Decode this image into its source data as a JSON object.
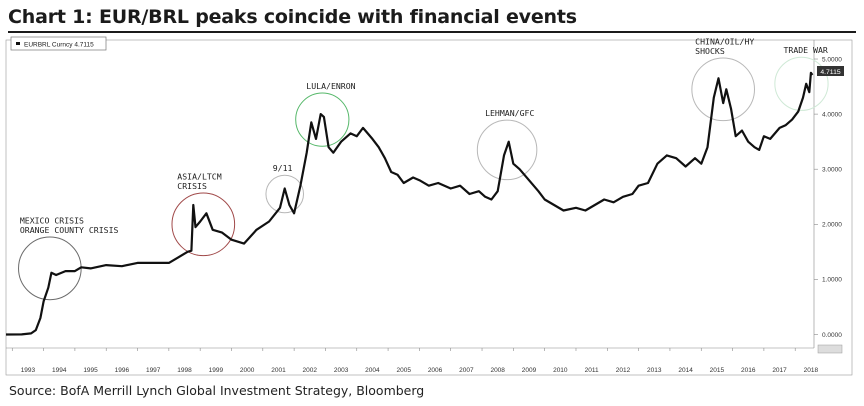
{
  "header": {
    "title": "Chart 1: EUR/BRL peaks coincide with financial events"
  },
  "footer": {
    "source": "Source: BofA Merrill Lynch Global Investment Strategy, Bloomberg"
  },
  "chart_data": {
    "type": "line",
    "legend": {
      "text": "EURBRL Curncy 4.7115",
      "placement": "top-left"
    },
    "last_value_label": "4.7115",
    "x_ticks": [
      "1993",
      "1994",
      "1995",
      "1996",
      "1997",
      "1998",
      "1999",
      "2000",
      "2001",
      "2002",
      "2003",
      "2004",
      "2005",
      "2006",
      "2007",
      "2008",
      "2009",
      "2010",
      "2011",
      "2012",
      "2013",
      "2014",
      "2015",
      "2016",
      "2017",
      "2018"
    ],
    "y_ticks": [
      "0.0000",
      "1.0000",
      "2.0000",
      "3.0000",
      "4.0000",
      "5.0000"
    ],
    "xlim": [
      1992.8,
      2018.6
    ],
    "ylim": [
      -0.1,
      5.2
    ],
    "series": [
      {
        "values": [
          [
            1992.8,
            0.0
          ],
          [
            1993.3,
            0.002
          ],
          [
            1993.6,
            0.02
          ],
          [
            1993.75,
            0.08
          ],
          [
            1993.9,
            0.3
          ],
          [
            1994.0,
            0.6
          ],
          [
            1994.15,
            0.85
          ],
          [
            1994.25,
            1.12
          ],
          [
            1994.4,
            1.08
          ],
          [
            1994.7,
            1.15
          ],
          [
            1995.0,
            1.15
          ],
          [
            1995.2,
            1.22
          ],
          [
            1995.5,
            1.2
          ],
          [
            1996.0,
            1.26
          ],
          [
            1996.5,
            1.24
          ],
          [
            1997.0,
            1.3
          ],
          [
            1997.5,
            1.3
          ],
          [
            1998.0,
            1.3
          ],
          [
            1998.3,
            1.4
          ],
          [
            1998.6,
            1.5
          ],
          [
            1998.72,
            1.52
          ],
          [
            1998.78,
            2.35
          ],
          [
            1998.85,
            1.95
          ],
          [
            1999.0,
            2.05
          ],
          [
            1999.2,
            2.2
          ],
          [
            1999.4,
            1.9
          ],
          [
            1999.7,
            1.85
          ],
          [
            2000.0,
            1.72
          ],
          [
            2000.4,
            1.65
          ],
          [
            2000.8,
            1.9
          ],
          [
            2001.2,
            2.05
          ],
          [
            2001.55,
            2.3
          ],
          [
            2001.7,
            2.65
          ],
          [
            2001.85,
            2.35
          ],
          [
            2002.0,
            2.2
          ],
          [
            2002.2,
            2.7
          ],
          [
            2002.4,
            3.3
          ],
          [
            2002.55,
            3.85
          ],
          [
            2002.7,
            3.55
          ],
          [
            2002.85,
            4.0
          ],
          [
            2002.95,
            3.95
          ],
          [
            2003.1,
            3.4
          ],
          [
            2003.25,
            3.3
          ],
          [
            2003.5,
            3.5
          ],
          [
            2003.8,
            3.65
          ],
          [
            2004.0,
            3.6
          ],
          [
            2004.2,
            3.75
          ],
          [
            2004.5,
            3.55
          ],
          [
            2004.7,
            3.4
          ],
          [
            2004.9,
            3.2
          ],
          [
            2005.1,
            2.95
          ],
          [
            2005.3,
            2.9
          ],
          [
            2005.5,
            2.75
          ],
          [
            2005.8,
            2.85
          ],
          [
            2006.0,
            2.8
          ],
          [
            2006.3,
            2.7
          ],
          [
            2006.6,
            2.75
          ],
          [
            2007.0,
            2.65
          ],
          [
            2007.3,
            2.7
          ],
          [
            2007.6,
            2.55
          ],
          [
            2007.9,
            2.6
          ],
          [
            2008.1,
            2.5
          ],
          [
            2008.3,
            2.45
          ],
          [
            2008.5,
            2.6
          ],
          [
            2008.7,
            3.25
          ],
          [
            2008.85,
            3.5
          ],
          [
            2009.0,
            3.1
          ],
          [
            2009.2,
            3.0
          ],
          [
            2009.5,
            2.8
          ],
          [
            2009.8,
            2.6
          ],
          [
            2010.0,
            2.45
          ],
          [
            2010.3,
            2.35
          ],
          [
            2010.6,
            2.25
          ],
          [
            2011.0,
            2.3
          ],
          [
            2011.3,
            2.25
          ],
          [
            2011.6,
            2.35
          ],
          [
            2011.9,
            2.45
          ],
          [
            2012.2,
            2.4
          ],
          [
            2012.5,
            2.5
          ],
          [
            2012.8,
            2.55
          ],
          [
            2013.0,
            2.7
          ],
          [
            2013.3,
            2.75
          ],
          [
            2013.6,
            3.1
          ],
          [
            2013.9,
            3.25
          ],
          [
            2014.2,
            3.2
          ],
          [
            2014.5,
            3.05
          ],
          [
            2014.8,
            3.2
          ],
          [
            2015.0,
            3.1
          ],
          [
            2015.2,
            3.4
          ],
          [
            2015.4,
            4.3
          ],
          [
            2015.55,
            4.65
          ],
          [
            2015.7,
            4.2
          ],
          [
            2015.8,
            4.45
          ],
          [
            2015.95,
            4.1
          ],
          [
            2016.1,
            3.6
          ],
          [
            2016.3,
            3.7
          ],
          [
            2016.5,
            3.5
          ],
          [
            2016.7,
            3.4
          ],
          [
            2016.85,
            3.35
          ],
          [
            2017.0,
            3.6
          ],
          [
            2017.2,
            3.55
          ],
          [
            2017.5,
            3.75
          ],
          [
            2017.7,
            3.8
          ],
          [
            2017.9,
            3.9
          ],
          [
            2018.1,
            4.05
          ],
          [
            2018.25,
            4.3
          ],
          [
            2018.35,
            4.55
          ],
          [
            2018.45,
            4.4
          ],
          [
            2018.5,
            4.75
          ],
          [
            2018.55,
            4.71
          ]
        ]
      }
    ],
    "annotations": [
      {
        "lines": [
          "MEXICO CRISIS",
          "ORANGE COUNTY CRISIS"
        ],
        "x": 1994.2,
        "y": 1.2,
        "radius_years": 1.0
      },
      {
        "lines": [
          "ASIA/LTCM",
          "CRISIS"
        ],
        "x": 1999.1,
        "y": 2.0,
        "radius_years": 1.0
      },
      {
        "lines": [
          "9/11"
        ],
        "x": 2001.7,
        "y": 2.55,
        "radius_years": 0.6
      },
      {
        "lines": [
          "LULA/ENRON"
        ],
        "x": 2002.9,
        "y": 3.9,
        "radius_years": 0.85
      },
      {
        "lines": [
          "LEHMAN/GFC"
        ],
        "x": 2008.8,
        "y": 3.35,
        "radius_years": 0.95
      },
      {
        "lines": [
          "CHINA/OIL/HY",
          "SHOCKS"
        ],
        "x": 2015.7,
        "y": 4.45,
        "radius_years": 1.0
      },
      {
        "lines": [
          "TRADE WAR"
        ],
        "x": 2018.2,
        "y": 4.55,
        "radius_years": 0.85
      }
    ],
    "grid": false,
    "line_color": "#111111",
    "circle_colors": {
      "dark": "#a14a4a",
      "light": "#cfe9d6",
      "green": "#56b86a",
      "grey": "#b8b8b8"
    }
  }
}
